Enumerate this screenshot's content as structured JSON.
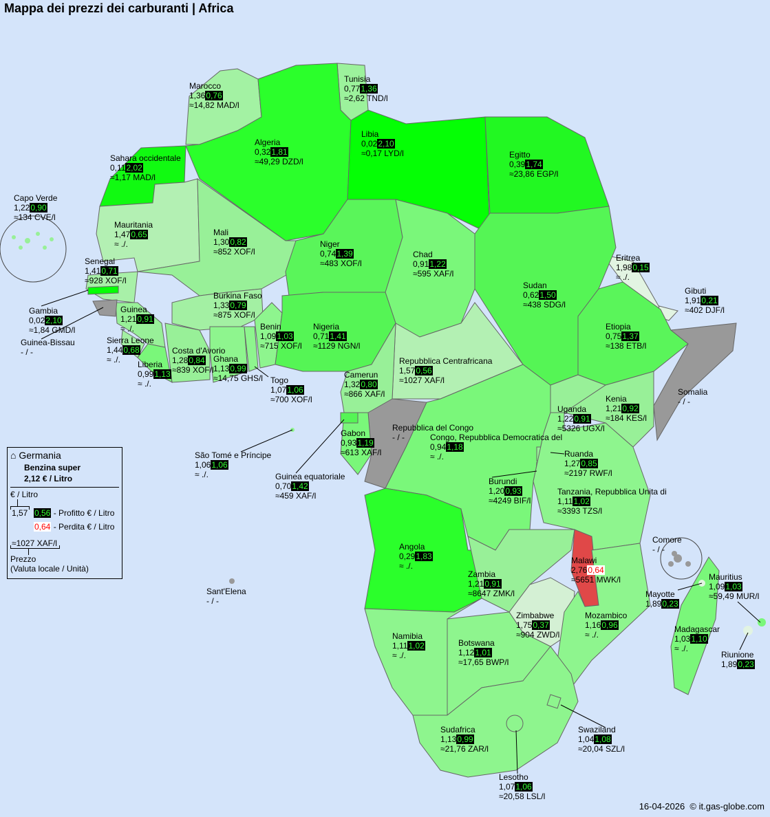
{
  "title": "Mappa dei prezzi dei carburanti | Africa",
  "footer": {
    "date": "16-04-2026",
    "copyright": "© it.gas-globe.com"
  },
  "colors": {
    "sea": "#d4e4fa",
    "profit_bg": "#000000",
    "profit_text": "#33ff33",
    "loss_text": "#ff0000",
    "no_data": "#999999",
    "loss_country": "#e04848"
  },
  "legend": {
    "home_icon": "house-icon",
    "country": "Germania",
    "fuel": "Benzina super",
    "price": "2,12 € / Litro",
    "unit": "€ / Litro",
    "sample_price": "1,57",
    "sample_profit": "0,56",
    "profit_label": "- Profitto € / Litro",
    "sample_loss": "0,64",
    "loss_label": "- Perdita € / Litro",
    "sample_local": "≈1027 XAF/l",
    "local_label": "Prezzo",
    "local_sub": "(Valuta locale / Unità)"
  },
  "countries": [
    {
      "name": "Marocco",
      "price": "1,36",
      "diff": "0,76",
      "local": "≈14,82 MAD/l",
      "color": "#a3f2a3"
    },
    {
      "name": "Tunisia",
      "price": "0,77",
      "diff": "1,36",
      "local": "≈2,62 TND/l",
      "color": "#9cf29c"
    },
    {
      "name": "Algeria",
      "price": "0,32",
      "diff": "1,81",
      "local": "≈49,29 DZD/l",
      "color": "#2bff2b"
    },
    {
      "name": "Libia",
      "price": "0,02",
      "diff": "2,10",
      "local": "≈0,17 LYD/l",
      "color": "#05ff05"
    },
    {
      "name": "Sahara occidentale",
      "price": "0,11",
      "diff": "2,02",
      "local": "≈1,17 MAD/l",
      "color": "#11fa11"
    },
    {
      "name": "Egitto",
      "price": "0,39",
      "diff": "1,74",
      "local": "≈23,86 EGP/l",
      "color": "#22f822"
    },
    {
      "name": "Capo Verde",
      "price": "1,22",
      "diff": "0,90",
      "local": "≈134 CVE/l",
      "color": "#98f098"
    },
    {
      "name": "Mauritania",
      "price": "1,47",
      "diff": "0,65",
      "local": "≈ ./.",
      "color": "#b3f0b3"
    },
    {
      "name": "Mali",
      "price": "1,30",
      "diff": "0,82",
      "local": "≈852 XOF/l",
      "color": "#98f098"
    },
    {
      "name": "Niger",
      "price": "0,74",
      "diff": "1,39",
      "local": "≈483 XOF/l",
      "color": "#5af55a"
    },
    {
      "name": "Chad",
      "price": "0,91",
      "diff": "1,22",
      "local": "≈595 XAF/l",
      "color": "#7af77a"
    },
    {
      "name": "Senegal",
      "price": "1,41",
      "diff": "0,71",
      "local": "≈928 XOF/l",
      "color": "#a8f0a8"
    },
    {
      "name": "Eritrea",
      "price": "1,98",
      "diff": "0,15",
      "local": "≈ ./.",
      "color": "#e2f4e2"
    },
    {
      "name": "Sudan",
      "price": "0,62",
      "diff": "1,50",
      "local": "≈438 SDG/l",
      "color": "#55f555"
    },
    {
      "name": "Gibuti",
      "price": "1,91",
      "diff": "0,21",
      "local": "≈402 DJF/l",
      "color": "#e2f4e2"
    },
    {
      "name": "Gambia",
      "price": "0,02",
      "diff": "2,10",
      "local": "≈1,84 GMD/l",
      "color": "#05ff05"
    },
    {
      "name": "Guinea",
      "price": "1,21",
      "diff": "0,91",
      "local": "≈ ./.",
      "color": "#98f098"
    },
    {
      "name": "Burkina Faso",
      "price": "1,33",
      "diff": "0,79",
      "local": "≈875 XOF/l",
      "color": "#a3f0a3"
    },
    {
      "name": "Benin",
      "price": "1,09",
      "diff": "1,03",
      "local": "≈715 XOF/l",
      "color": "#8ef58e"
    },
    {
      "name": "Nigeria",
      "price": "0,71",
      "diff": "1,41",
      "local": "≈1129 NGN/l",
      "color": "#55f555"
    },
    {
      "name": "Etiopia",
      "price": "0,75",
      "diff": "1,37",
      "local": "≈138 ETB/l",
      "color": "#5af55a"
    },
    {
      "name": "Guinea-Bissau",
      "nodata": "- / -",
      "color": "#999999"
    },
    {
      "name": "Sierra Leone",
      "price": "1,44",
      "diff": "0,68",
      "local": "≈ ./.",
      "color": "#a3f0a3"
    },
    {
      "name": "Costa d'Avorio",
      "price": "1,28",
      "diff": "0,84",
      "local": "≈839 XOF/l",
      "color": "#98f098"
    },
    {
      "name": "Liberia",
      "price": "0,99",
      "diff": "1,13",
      "local": "≈ ./.",
      "color": "#7af77a"
    },
    {
      "name": "Ghana",
      "price": "1,13",
      "diff": "0,99",
      "local": "≈14,75 GHS/l",
      "color": "#8ef58e"
    },
    {
      "name": "Repubblica Centrafricana",
      "price": "1,57",
      "diff": "0,56",
      "local": "≈1027 XAF/l",
      "color": "#b3f0b3"
    },
    {
      "name": "Togo",
      "price": "1,07",
      "diff": "1,06",
      "local": "≈700 XOF/l",
      "color": "#8ef58e"
    },
    {
      "name": "Camerun",
      "price": "1,32",
      "diff": "0,80",
      "local": "≈866 XAF/l",
      "color": "#98f098"
    },
    {
      "name": "Somalia",
      "nodata": "- / -",
      "color": "#999999"
    },
    {
      "name": "Uganda",
      "price": "1,22",
      "diff": "0,91",
      "local": "≈5326 UGX/l",
      "color": "#98f098"
    },
    {
      "name": "Kenia",
      "price": "1,21",
      "diff": "0,92",
      "local": "≈184 KES/l",
      "color": "#98f098"
    },
    {
      "name": "Repubblica del Congo",
      "nodata": "- / -",
      "color": "#999999"
    },
    {
      "name": "Congo, Repubblica Democratica del",
      "price": "0,94",
      "diff": "1,18",
      "local": "≈ ./.",
      "color": "#7af77a"
    },
    {
      "name": "São Tomé e Príncipe",
      "price": "1,06",
      "diff": "1,06",
      "local": "≈ ./.",
      "color": "#8ef58e"
    },
    {
      "name": "Gabon",
      "price": "0,93",
      "diff": "1,19",
      "local": "≈613 XAF/l",
      "color": "#7af77a"
    },
    {
      "name": "Ruanda",
      "price": "1,27",
      "diff": "0,85",
      "local": "≈2197 RWF/l",
      "color": "#98f098"
    },
    {
      "name": "Guinea equatoriale",
      "price": "0,70",
      "diff": "1,42",
      "local": "≈459 XAF/l",
      "color": "#55f555"
    },
    {
      "name": "Burundi",
      "price": "1,20",
      "diff": "0,93",
      "local": "≈4249 BIF/l",
      "color": "#98f098"
    },
    {
      "name": "Tanzania, Repubblica Unita di",
      "price": "1,11",
      "diff": "1,02",
      "local": "≈3393 TZS/l",
      "color": "#8ef58e"
    },
    {
      "name": "Angola",
      "price": "0,29",
      "diff": "1,83",
      "local": "≈ ./.",
      "color": "#2bff2b"
    },
    {
      "name": "Comore",
      "nodata": "- / -",
      "color": "#999999"
    },
    {
      "name": "Malawi",
      "price": "2,76",
      "diff": "0,64",
      "loss": true,
      "local": "≈5651 MWK/l",
      "color": "#e04848"
    },
    {
      "name": "Zambia",
      "price": "1,21",
      "diff": "0,91",
      "local": "≈8647 ZMK/l",
      "color": "#98f098"
    },
    {
      "name": "Mauritius",
      "price": "1,09",
      "diff": "1,03",
      "local": "≈59,49 MUR/l",
      "color": "#7af77a"
    },
    {
      "name": "Sant'Elena",
      "nodata": "- / -",
      "color": "#999999"
    },
    {
      "name": "Mayotte",
      "price": "1,89",
      "diff": "0,23",
      "color": "#e2f4e2"
    },
    {
      "name": "Zimbabwe",
      "price": "1,75",
      "diff": "0,37",
      "local": "≈904 ZWD/l",
      "color": "#d4f0d4"
    },
    {
      "name": "Mozambico",
      "price": "1,16",
      "diff": "0,96",
      "local": "≈ ./.",
      "color": "#8ef58e"
    },
    {
      "name": "Namibia",
      "price": "1,11",
      "diff": "1,02",
      "local": "≈ ./.",
      "color": "#8ef58e"
    },
    {
      "name": "Botswana",
      "price": "1,12",
      "diff": "1,01",
      "local": "≈17,65 BWP/l",
      "color": "#8ef58e"
    },
    {
      "name": "Madagascar",
      "price": "1,03",
      "diff": "1,10",
      "local": "≈ ./.",
      "color": "#7af77a"
    },
    {
      "name": "Riunione",
      "price": "1,89",
      "diff": "0,23",
      "color": "#e2f4e2"
    },
    {
      "name": "Sudafrica",
      "price": "1,13",
      "diff": "0,99",
      "local": "≈21,76 ZAR/l",
      "color": "#8ef58e"
    },
    {
      "name": "Swaziland",
      "price": "1,04",
      "diff": "1,08",
      "local": "≈20,04 SZL/l",
      "color": "#8ef58e"
    },
    {
      "name": "Lesotho",
      "price": "1,07",
      "diff": "1,06",
      "local": "≈20,58 LSL/l",
      "color": "#8ef58e"
    }
  ]
}
